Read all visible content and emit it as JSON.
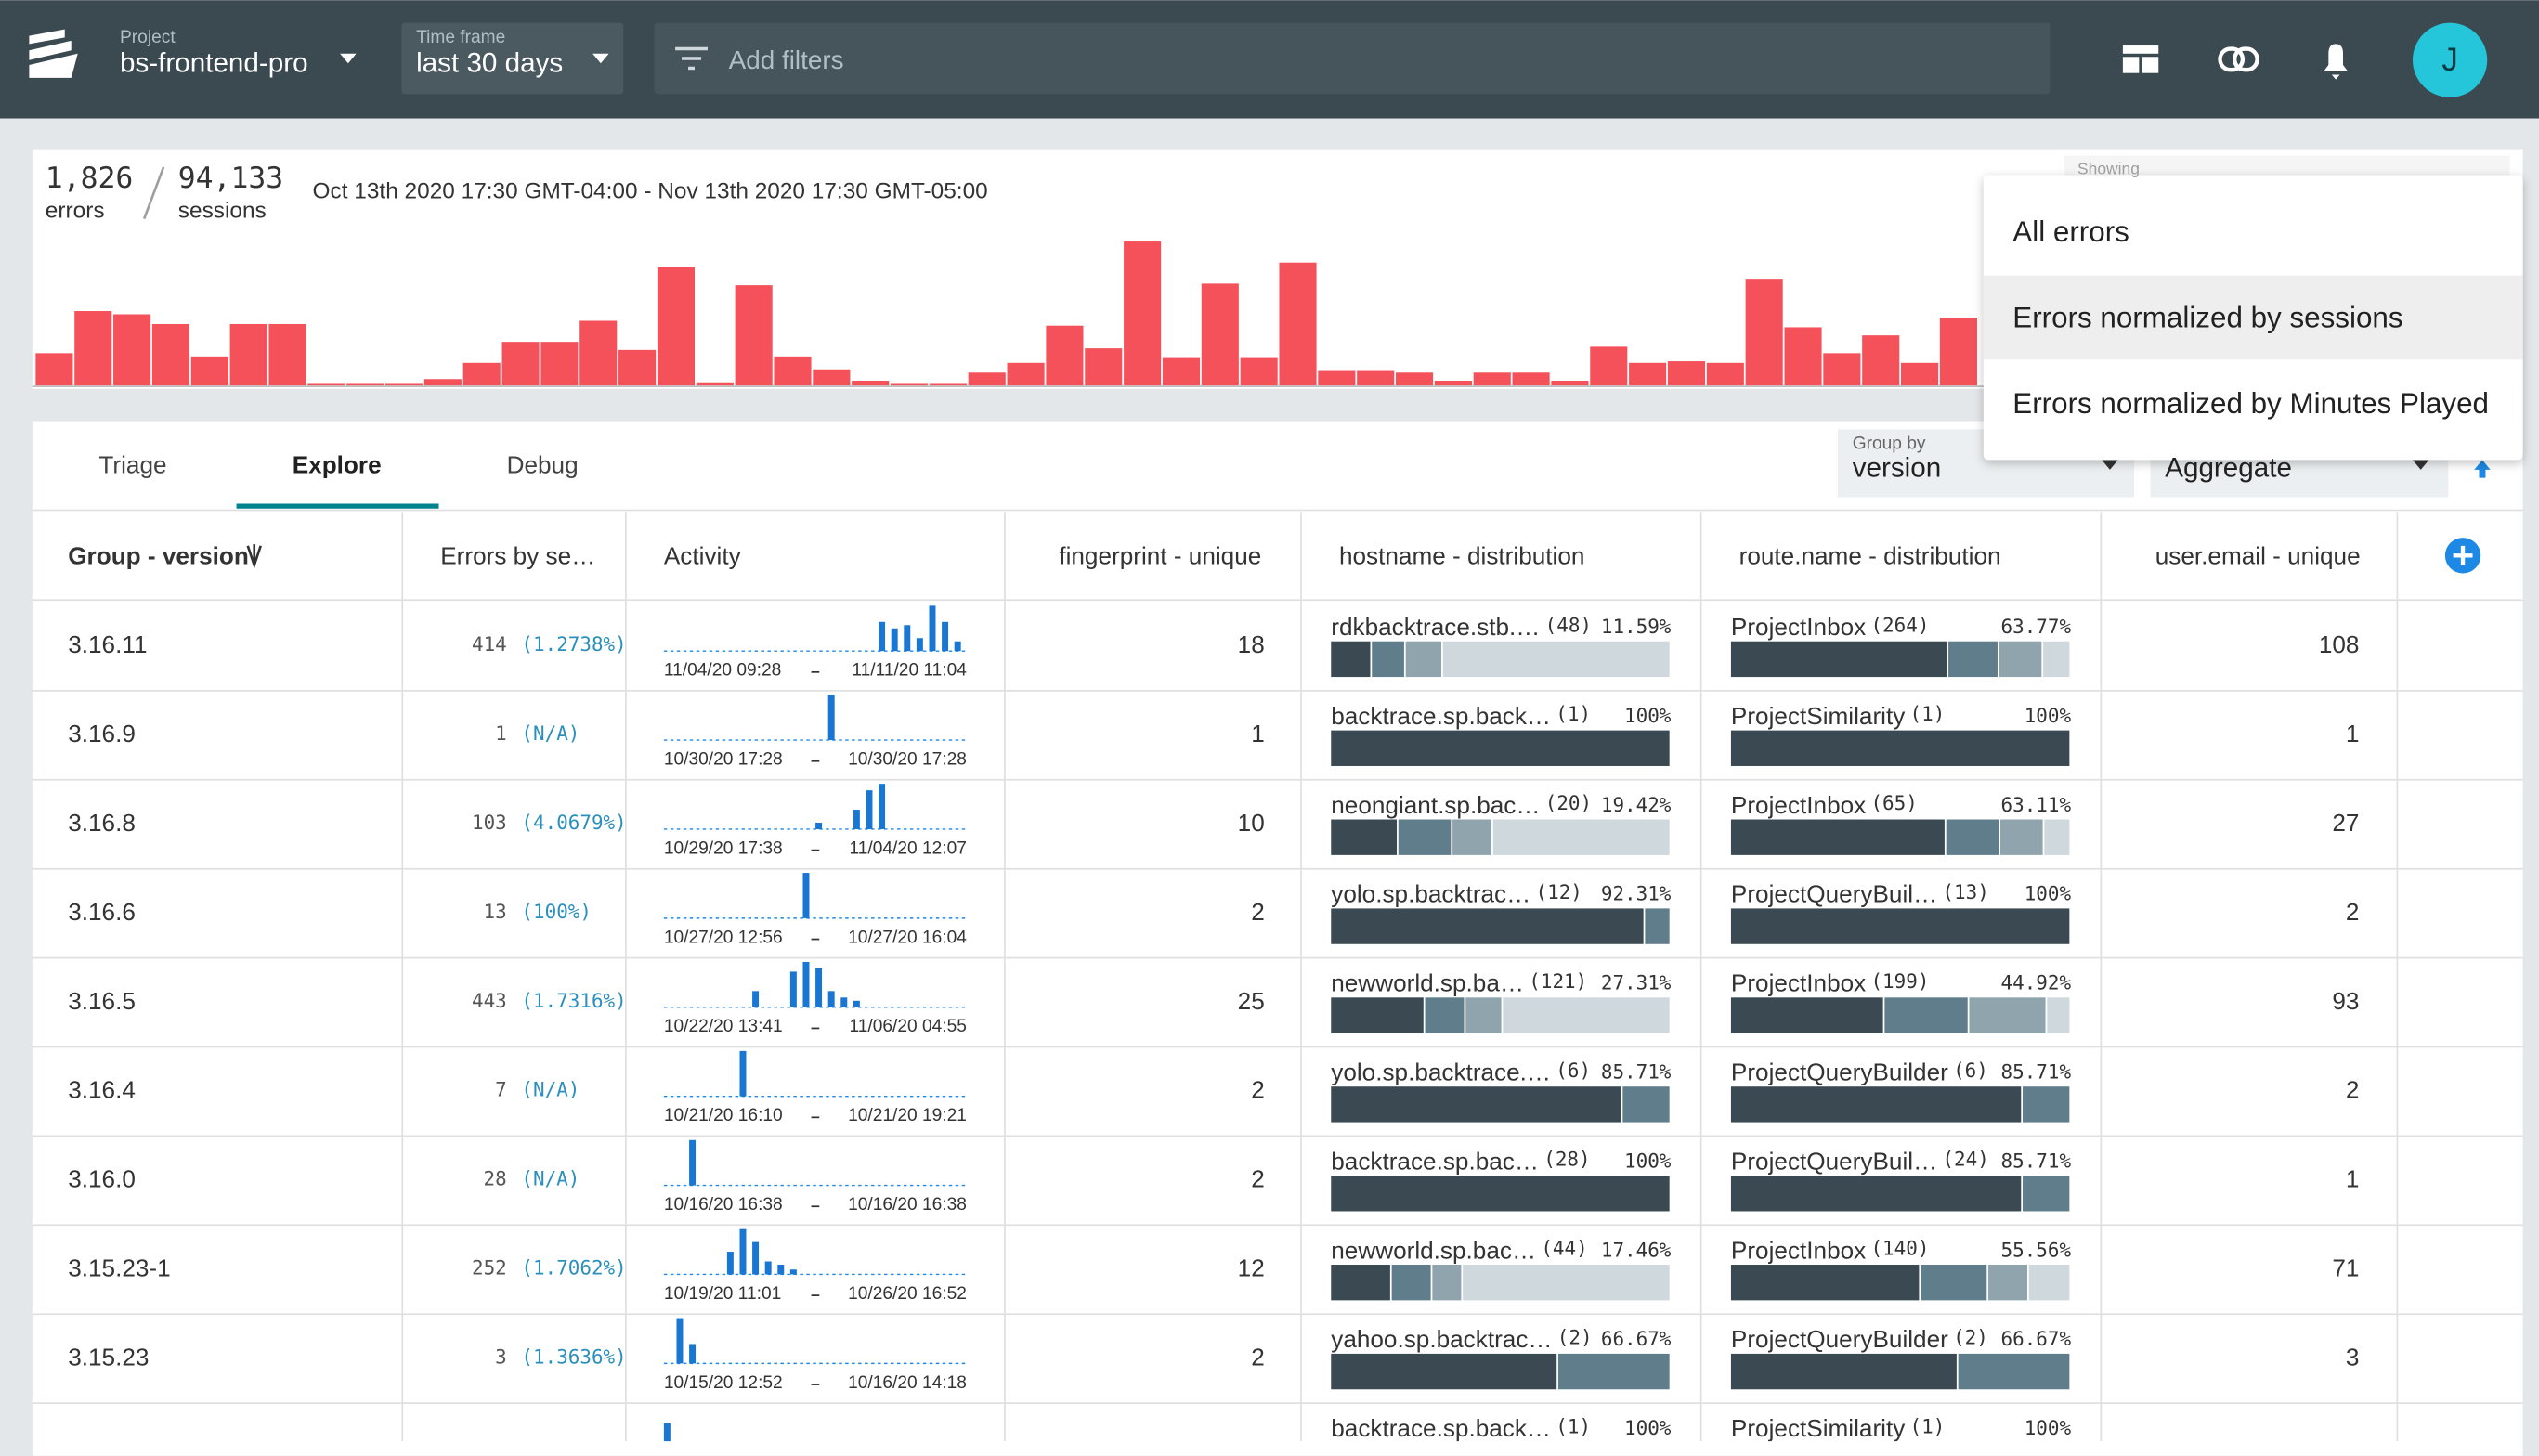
{
  "header": {
    "project_label": "Project",
    "project": "bs-frontend-pro",
    "timeframe_label": "Time frame",
    "timeframe": "last 30 days",
    "filter_placeholder": "Add filters",
    "avatar": "J"
  },
  "summary": {
    "errors": "1,826",
    "errors_label": "errors",
    "sessions": "94,133",
    "sessions_label": "sessions",
    "date_range": "Oct 13th 2020 17:30 GMT-04:00 - Nov 13th 2020 17:30 GMT-05:00",
    "showing_label": "Showing"
  },
  "histogram": {
    "values": [
      20,
      46,
      44,
      38,
      18,
      38,
      38,
      1,
      1,
      1,
      4,
      14,
      27,
      27,
      40,
      22,
      73,
      2,
      62,
      18,
      10,
      3,
      1,
      1,
      8,
      14,
      37,
      23,
      89,
      17,
      63,
      17,
      76,
      9,
      9,
      8,
      3,
      8,
      8,
      3,
      24,
      14,
      15,
      14,
      66,
      36,
      20,
      31,
      14,
      42
    ]
  },
  "dropdown": {
    "options": [
      "All errors",
      "Errors normalized by sessions",
      "Errors normalized by Minutes Played"
    ],
    "selected": 1
  },
  "tabs": {
    "items": [
      "Triage",
      "Explore",
      "Debug"
    ],
    "active": 1
  },
  "group_by": {
    "label": "Group by",
    "value": "version"
  },
  "aggregate": "Aggregate",
  "table": {
    "columns": [
      "Group - version",
      "Errors by se…",
      "Activity",
      "fingerprint - unique",
      "hostname - distribution",
      "route.name - distribution",
      "user.email - unique"
    ],
    "rows": [
      {
        "version": "3.16.11",
        "errors": 414,
        "ratio": "(1.2738%)",
        "activity": [
          0,
          0,
          0,
          0,
          0,
          0,
          0,
          0,
          0,
          0,
          0,
          0,
          0,
          0,
          0,
          0,
          0,
          18,
          14,
          16,
          8,
          28,
          18,
          6
        ],
        "start": "11/04/20 09:28",
        "end": "11/11/20 11:04",
        "fingerprint": 18,
        "host": {
          "name": "rdkbacktrace.stb.…",
          "count": "(48)",
          "percent": {
            "value": 11.59,
            "label": "11.59%"
          },
          "rest": [
            10,
            11,
            67.41
          ]
        },
        "route": {
          "name": "ProjectInbox",
          "count": "(264)",
          "percent": {
            "value": 63.77,
            "label": "63.77%"
          },
          "rest": [
            15,
            13,
            8.23
          ]
        },
        "users": 108
      },
      {
        "version": "3.16.9",
        "errors": 1,
        "ratio": "(N/A)",
        "activity": [
          0,
          0,
          0,
          0,
          0,
          0,
          0,
          0,
          0,
          0,
          0,
          0,
          0,
          28,
          0,
          0,
          0,
          0,
          0,
          0,
          0,
          0,
          0,
          0
        ],
        "start": "10/30/20 17:28",
        "end": "10/30/20 17:28",
        "fingerprint": 1,
        "host": {
          "name": "backtrace.sp.back…",
          "count": "(1)",
          "percent": {
            "value": 100,
            "label": "100%"
          },
          "rest": []
        },
        "route": {
          "name": "ProjectSimilarity",
          "count": "(1)",
          "percent": {
            "value": 100,
            "label": "100%"
          },
          "rest": []
        },
        "users": 1
      },
      {
        "version": "3.16.8",
        "errors": 103,
        "ratio": "(4.0679%)",
        "activity": [
          0,
          0,
          0,
          0,
          0,
          0,
          0,
          0,
          0,
          0,
          0,
          0,
          4,
          0,
          0,
          12,
          24,
          28,
          0,
          0,
          0,
          0,
          0,
          0
        ],
        "start": "10/29/20 17:38",
        "end": "11/04/20 12:07",
        "fingerprint": 10,
        "host": {
          "name": "neongiant.sp.bac…",
          "count": "(20)",
          "percent": {
            "value": 19.42,
            "label": "19.42%"
          },
          "rest": [
            16,
            12,
            52.58
          ]
        },
        "route": {
          "name": "ProjectInbox",
          "count": "(65)",
          "percent": {
            "value": 63.11,
            "label": "63.11%"
          },
          "rest": [
            16,
            13,
            7.89
          ]
        },
        "users": 27
      },
      {
        "version": "3.16.6",
        "errors": 13,
        "ratio": "(100%)",
        "activity": [
          0,
          0,
          0,
          0,
          0,
          0,
          0,
          0,
          0,
          0,
          0,
          28,
          0,
          0,
          0,
          0,
          0,
          0,
          0,
          0,
          0,
          0,
          0,
          0
        ],
        "start": "10/27/20 12:56",
        "end": "10/27/20 16:04",
        "fingerprint": 2,
        "host": {
          "name": "yolo.sp.backtrac…",
          "count": "(12)",
          "percent": {
            "value": 92.31,
            "label": "92.31%"
          },
          "rest": [
            7.69
          ]
        },
        "route": {
          "name": "ProjectQueryBuil…",
          "count": "(13)",
          "percent": {
            "value": 100,
            "label": "100%"
          },
          "rest": []
        },
        "users": 2
      },
      {
        "version": "3.16.5",
        "errors": 443,
        "ratio": "(1.7316%)",
        "activity": [
          0,
          0,
          0,
          0,
          0,
          0,
          0,
          10,
          0,
          0,
          22,
          28,
          24,
          10,
          6,
          4,
          0,
          0,
          0,
          0,
          0,
          0,
          0,
          0
        ],
        "start": "10/22/20 13:41",
        "end": "11/06/20 04:55",
        "fingerprint": 25,
        "host": {
          "name": "newworld.sp.ba…",
          "count": "(121)",
          "percent": {
            "value": 27.31,
            "label": "27.31%"
          },
          "rest": [
            12,
            11,
            49.69
          ]
        },
        "route": {
          "name": "ProjectInbox",
          "count": "(199)",
          "percent": {
            "value": 44.92,
            "label": "44.92%"
          },
          "rest": [
            25,
            23,
            7.08
          ]
        },
        "users": 93
      },
      {
        "version": "3.16.4",
        "errors": 7,
        "ratio": "(N/A)",
        "activity": [
          0,
          0,
          0,
          0,
          0,
          0,
          28,
          0,
          0,
          0,
          0,
          0,
          0,
          0,
          0,
          0,
          0,
          0,
          0,
          0,
          0,
          0,
          0,
          0
        ],
        "start": "10/21/20 16:10",
        "end": "10/21/20 19:21",
        "fingerprint": 2,
        "host": {
          "name": "yolo.sp.backtrace.…",
          "count": "(6)",
          "percent": {
            "value": 85.71,
            "label": "85.71%"
          },
          "rest": [
            14.29
          ]
        },
        "route": {
          "name": "ProjectQueryBuilder",
          "count": "(6)",
          "percent": {
            "value": 85.71,
            "label": "85.71%"
          },
          "rest": [
            14.29
          ]
        },
        "users": 2
      },
      {
        "version": "3.16.0",
        "errors": 28,
        "ratio": "(N/A)",
        "activity": [
          0,
          0,
          28,
          0,
          0,
          0,
          0,
          0,
          0,
          0,
          0,
          0,
          0,
          0,
          0,
          0,
          0,
          0,
          0,
          0,
          0,
          0,
          0,
          0
        ],
        "start": "10/16/20 16:38",
        "end": "10/16/20 16:38",
        "fingerprint": 2,
        "host": {
          "name": "backtrace.sp.bac…",
          "count": "(28)",
          "percent": {
            "value": 100,
            "label": "100%"
          },
          "rest": []
        },
        "route": {
          "name": "ProjectQueryBuil…",
          "count": "(24)",
          "percent": {
            "value": 85.71,
            "label": "85.71%"
          },
          "rest": [
            14.29
          ]
        },
        "users": 1
      },
      {
        "version": "3.15.23-1",
        "errors": 252,
        "ratio": "(1.7062%)",
        "activity": [
          0,
          0,
          0,
          0,
          0,
          14,
          28,
          20,
          8,
          6,
          3,
          0,
          0,
          0,
          0,
          0,
          0,
          0,
          0,
          0,
          0,
          0,
          0,
          0
        ],
        "start": "10/19/20 11:01",
        "end": "10/26/20 16:52",
        "fingerprint": 12,
        "host": {
          "name": "newworld.sp.bac…",
          "count": "(44)",
          "percent": {
            "value": 17.46,
            "label": "17.46%"
          },
          "rest": [
            12,
            9,
            61.54
          ]
        },
        "route": {
          "name": "ProjectInbox",
          "count": "(140)",
          "percent": {
            "value": 55.56,
            "label": "55.56%"
          },
          "rest": [
            20,
            12,
            12.44
          ]
        },
        "users": 71
      },
      {
        "version": "3.15.23",
        "errors": 3,
        "ratio": "(1.3636%)",
        "activity": [
          0,
          28,
          12,
          0,
          0,
          0,
          0,
          0,
          0,
          0,
          0,
          0,
          0,
          0,
          0,
          0,
          0,
          0,
          0,
          0,
          0,
          0,
          0,
          0
        ],
        "start": "10/15/20 12:52",
        "end": "10/16/20 14:18",
        "fingerprint": 2,
        "host": {
          "name": "yahoo.sp.backtrac…",
          "count": "(2)",
          "percent": {
            "value": 66.67,
            "label": "66.67%"
          },
          "rest": [
            33.33
          ]
        },
        "route": {
          "name": "ProjectQueryBuilder",
          "count": "(2)",
          "percent": {
            "value": 66.67,
            "label": "66.67%"
          },
          "rest": [
            33.33
          ]
        },
        "users": 3
      },
      {
        "activity": [
          18,
          0,
          0,
          0,
          0,
          0,
          0,
          0,
          0,
          0,
          0,
          0,
          0,
          0,
          0,
          0,
          0,
          0,
          0,
          0,
          0,
          0,
          0,
          0
        ],
        "host": {
          "name": "backtrace.sp.back…",
          "count": "(1)",
          "percent": {
            "value": 100,
            "label": "100%"
          },
          "rest": []
        },
        "route": {
          "name": "ProjectSimilarity",
          "count": "(1)",
          "percent": {
            "value": 100,
            "label": "100%"
          },
          "rest": []
        }
      }
    ]
  }
}
